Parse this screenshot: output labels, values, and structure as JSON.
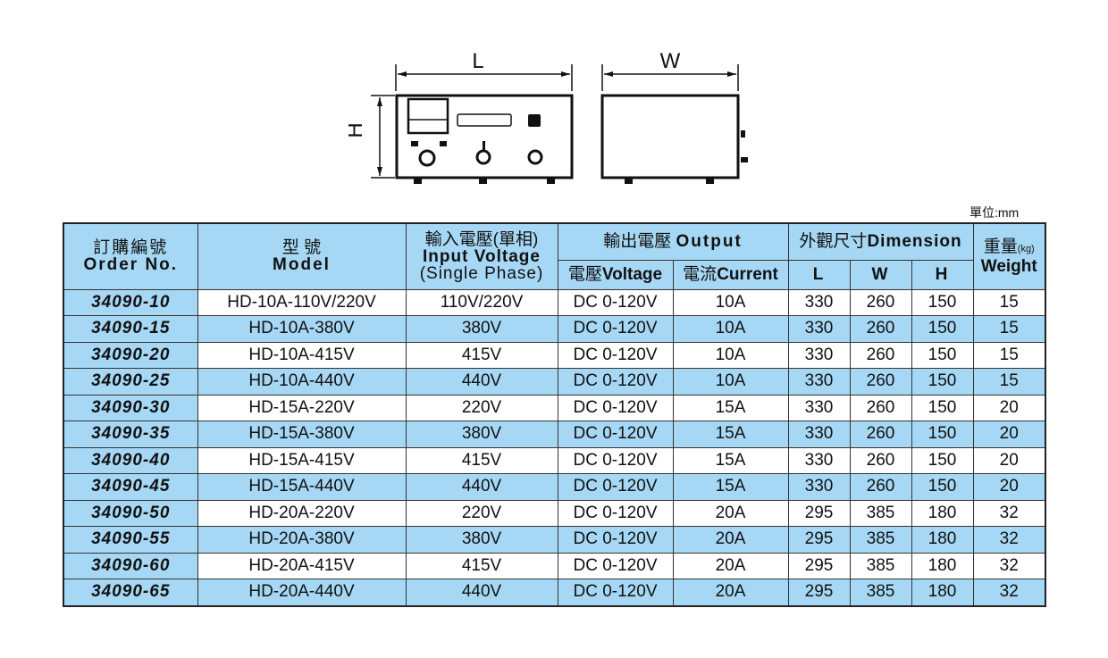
{
  "drawing": {
    "label_l": "L",
    "label_w": "W",
    "label_h": "H"
  },
  "unit": "單位:mm",
  "header": {
    "order_zh": "訂購編號",
    "order_en": "Order No.",
    "model_zh": "型 號",
    "model_en": "Model",
    "input_zh": "輸入電壓(單相)",
    "input_en1": "Input Voltage",
    "input_en2": "(Single Phase)",
    "output_zh": "輸出電壓",
    "output_en": "Output",
    "voltage_zh": "電壓",
    "voltage_en": "Voltage",
    "current_zh": "電流",
    "current_en": "Current",
    "dim_zh": "外觀尺寸",
    "dim_en": "Dimension",
    "l": "L",
    "w": "W",
    "h": "H",
    "weight_zh": "重量",
    "weight_unit": "(kg)",
    "weight_en": "Weight"
  },
  "rows": [
    [
      "34090-10",
      "HD-10A-110V/220V",
      "110V/220V",
      "DC 0-120V",
      "10A",
      "330",
      "260",
      "150",
      "15"
    ],
    [
      "34090-15",
      "HD-10A-380V",
      "380V",
      "DC 0-120V",
      "10A",
      "330",
      "260",
      "150",
      "15"
    ],
    [
      "34090-20",
      "HD-10A-415V",
      "415V",
      "DC 0-120V",
      "10A",
      "330",
      "260",
      "150",
      "15"
    ],
    [
      "34090-25",
      "HD-10A-440V",
      "440V",
      "DC 0-120V",
      "10A",
      "330",
      "260",
      "150",
      "15"
    ],
    [
      "34090-30",
      "HD-15A-220V",
      "220V",
      "DC 0-120V",
      "15A",
      "330",
      "260",
      "150",
      "20"
    ],
    [
      "34090-35",
      "HD-15A-380V",
      "380V",
      "DC 0-120V",
      "15A",
      "330",
      "260",
      "150",
      "20"
    ],
    [
      "34090-40",
      "HD-15A-415V",
      "415V",
      "DC 0-120V",
      "15A",
      "330",
      "260",
      "150",
      "20"
    ],
    [
      "34090-45",
      "HD-15A-440V",
      "440V",
      "DC 0-120V",
      "15A",
      "330",
      "260",
      "150",
      "20"
    ],
    [
      "34090-50",
      "HD-20A-220V",
      "220V",
      "DC 0-120V",
      "20A",
      "295",
      "385",
      "180",
      "32"
    ],
    [
      "34090-55",
      "HD-20A-380V",
      "380V",
      "DC 0-120V",
      "20A",
      "295",
      "385",
      "180",
      "32"
    ],
    [
      "34090-60",
      "HD-20A-415V",
      "415V",
      "DC 0-120V",
      "20A",
      "295",
      "385",
      "180",
      "32"
    ],
    [
      "34090-65",
      "HD-20A-440V",
      "440V",
      "DC 0-120V",
      "20A",
      "295",
      "385",
      "180",
      "32"
    ]
  ]
}
